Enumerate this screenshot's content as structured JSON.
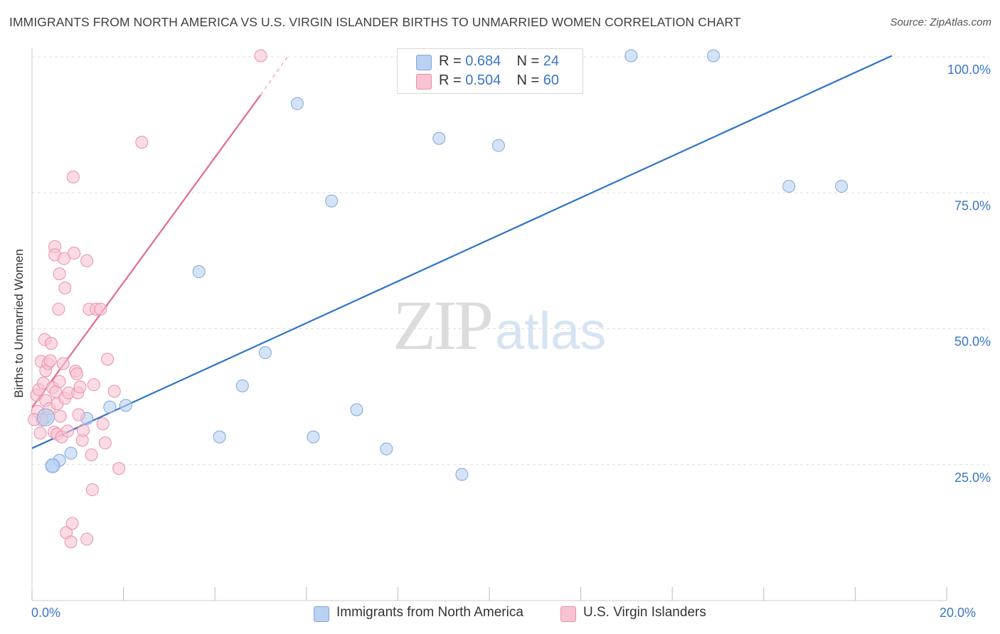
{
  "title": "IMMIGRANTS FROM NORTH AMERICA VS U.S. VIRGIN ISLANDER BIRTHS TO UNMARRIED WOMEN CORRELATION CHART",
  "source": "Source: ZipAtlas.com",
  "watermark": {
    "zip": "ZIP",
    "atlas": "atlas"
  },
  "legend": {
    "rows": [
      {
        "r_label": "R =",
        "r_value": "0.684",
        "n_label": "N =",
        "n_value": "24",
        "color": "#b9d1f2"
      },
      {
        "r_label": "R =",
        "r_value": "0.504",
        "n_label": "N =",
        "n_value": "60",
        "color": "#f8c3d2"
      }
    ]
  },
  "bottom_legend": [
    {
      "label": "Immigrants from North America",
      "color": "#b9d1f2"
    },
    {
      "label": "U.S. Virgin Islanders",
      "color": "#f8c3d2"
    }
  ],
  "colors": {
    "blue_fill": "#b9d1f2",
    "blue_stroke": "#7ea6dd",
    "blue_line": "#2c72c9",
    "pink_fill": "#f8c3d2",
    "pink_stroke": "#ea8fab",
    "pink_line": "#e46a92",
    "grid": "#dddddd",
    "tick_text": "#3a76c8"
  },
  "chart_data": {
    "type": "scatter",
    "title": "IMMIGRANTS FROM NORTH AMERICA VS U.S. VIRGIN ISLANDER BIRTHS TO UNMARRIED WOMEN CORRELATION CHART",
    "xlabel": "",
    "ylabel": "Births to Unmarried Women",
    "xlim": [
      0,
      20
    ],
    "ylim": [
      0,
      105
    ],
    "x_tick_labels": [
      "0.0%",
      "20.0%"
    ],
    "y_ticks": [
      25,
      50,
      75,
      100
    ],
    "y_tick_labels": [
      "25.0%",
      "50.0%",
      "75.0%",
      "100.0%"
    ],
    "grid": "horizontal dashed",
    "legend_position": "top-center",
    "series": [
      {
        "name": "Immigrants from North America",
        "points": [
          [
            0.3,
            33.7
          ],
          [
            0.45,
            24.8
          ],
          [
            0.6,
            25.8
          ],
          [
            0.85,
            27.1
          ],
          [
            1.2,
            33.5
          ],
          [
            1.7,
            35.6
          ],
          [
            2.05,
            35.9
          ],
          [
            3.65,
            60.5
          ],
          [
            4.1,
            30.1
          ],
          [
            4.6,
            39.5
          ],
          [
            5.1,
            45.6
          ],
          [
            5.8,
            91.4
          ],
          [
            6.15,
            30.1
          ],
          [
            6.55,
            73.5
          ],
          [
            7.1,
            35.1
          ],
          [
            7.75,
            27.9
          ],
          [
            8.9,
            85.0
          ],
          [
            9.4,
            23.2
          ],
          [
            9.7,
            100.2
          ],
          [
            10.2,
            83.7
          ],
          [
            13.1,
            100.2
          ],
          [
            14.9,
            100.2
          ],
          [
            16.55,
            76.2
          ],
          [
            17.7,
            76.2
          ]
        ],
        "trend": {
          "x": [
            0.0,
            18.8
          ],
          "y": [
            28.0,
            100.2
          ]
        }
      },
      {
        "name": "U.S. Virgin Islanders",
        "points": [
          [
            0.1,
            37.8
          ],
          [
            0.12,
            34.8
          ],
          [
            0.15,
            38.8
          ],
          [
            0.18,
            30.8
          ],
          [
            0.2,
            44.0
          ],
          [
            0.22,
            33.2
          ],
          [
            0.25,
            40.0
          ],
          [
            0.28,
            48.0
          ],
          [
            0.3,
            42.3
          ],
          [
            0.3,
            36.8
          ],
          [
            0.35,
            43.6
          ],
          [
            0.38,
            35.3
          ],
          [
            0.4,
            44.1
          ],
          [
            0.42,
            47.3
          ],
          [
            0.45,
            39.2
          ],
          [
            0.48,
            31.0
          ],
          [
            0.5,
            65.1
          ],
          [
            0.5,
            63.6
          ],
          [
            0.52,
            38.4
          ],
          [
            0.55,
            36.2
          ],
          [
            0.55,
            30.6
          ],
          [
            0.58,
            53.6
          ],
          [
            0.6,
            60.1
          ],
          [
            0.6,
            40.3
          ],
          [
            0.62,
            33.9
          ],
          [
            0.65,
            30.1
          ],
          [
            0.68,
            43.6
          ],
          [
            0.7,
            62.9
          ],
          [
            0.72,
            57.5
          ],
          [
            0.72,
            37.2
          ],
          [
            0.75,
            12.5
          ],
          [
            0.78,
            31.2
          ],
          [
            0.8,
            38.2
          ],
          [
            0.85,
            10.8
          ],
          [
            0.88,
            14.2
          ],
          [
            0.9,
            77.9
          ],
          [
            0.92,
            63.9
          ],
          [
            0.95,
            42.2
          ],
          [
            0.98,
            41.7
          ],
          [
            1.0,
            38.2
          ],
          [
            1.02,
            34.2
          ],
          [
            1.05,
            39.3
          ],
          [
            1.1,
            29.5
          ],
          [
            1.12,
            31.3
          ],
          [
            1.2,
            62.5
          ],
          [
            1.2,
            11.3
          ],
          [
            1.25,
            53.6
          ],
          [
            1.3,
            26.8
          ],
          [
            1.32,
            20.4
          ],
          [
            1.35,
            39.7
          ],
          [
            1.4,
            53.6
          ],
          [
            1.5,
            53.6
          ],
          [
            1.55,
            32.5
          ],
          [
            1.6,
            29.0
          ],
          [
            1.65,
            44.4
          ],
          [
            1.8,
            38.5
          ],
          [
            1.9,
            24.3
          ],
          [
            2.4,
            84.3
          ],
          [
            5.0,
            100.2
          ],
          [
            0.05,
            33.3
          ]
        ],
        "trend": {
          "x": [
            0.0,
            5.0
          ],
          "y": [
            35.5,
            93.0
          ]
        },
        "trend_dashed": {
          "x": [
            5.0,
            5.6
          ],
          "y": [
            93.0,
            100.2
          ]
        }
      }
    ]
  }
}
